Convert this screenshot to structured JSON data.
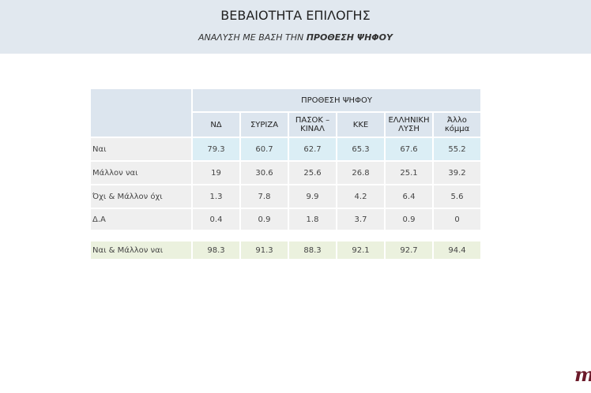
{
  "header": {
    "title": "ΒΕΒΑΙΟΤΗΤΑ ΕΠΙΛΟΓΗΣ",
    "subtitle_prefix": "ΑΝΑΛΥΣΗ ΜΕ ΒΑΣΗ ΤΗΝ ",
    "subtitle_bold": "ΠΡΟΘΕΣΗ ΨΗΦΟΥ"
  },
  "table": {
    "group_header": "ΠΡΟΘΕΣΗ ΨΗΦΟΥ",
    "columns": [
      [
        "ΝΔ",
        ""
      ],
      [
        "ΣΥΡΙΖΑ",
        ""
      ],
      [
        "ΠΑΣΟΚ –",
        "ΚΙΝΑΛ"
      ],
      [
        "ΚΚΕ",
        ""
      ],
      [
        "ΕΛΛΗΝΙΚΗ",
        "ΛΥΣΗ"
      ],
      [
        "Άλλο",
        "κόμμα"
      ]
    ],
    "rows": [
      {
        "label": "Ναι",
        "values": [
          "79.3",
          "60.7",
          "62.7",
          "65.3",
          "67.6",
          "55.2"
        ]
      },
      {
        "label": "Μάλλον ναι",
        "values": [
          "19",
          "30.6",
          "25.6",
          "26.8",
          "25.1",
          "39.2"
        ]
      },
      {
        "label": "Όχι & Μάλλον όχι",
        "values": [
          "1.3",
          "7.8",
          "9.9",
          "4.2",
          "6.4",
          "5.6"
        ]
      },
      {
        "label": "Δ.Α",
        "values": [
          "0.4",
          "0.9",
          "1.8",
          "3.7",
          "0.9",
          "0"
        ]
      }
    ],
    "total": {
      "label": "Ναι & Μάλλον ναι",
      "values": [
        "98.3",
        "91.3",
        "88.3",
        "92.1",
        "92.7",
        "94.4"
      ]
    }
  },
  "logo": {
    "text": "m",
    "color": "#6b1a2a"
  }
}
